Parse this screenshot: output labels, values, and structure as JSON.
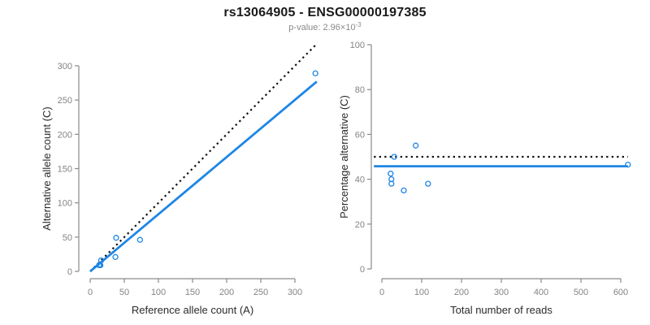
{
  "header": {
    "title": "rs13064905 - ENSG00000197385",
    "subtitle_prefix": "p-value: 2.96×10",
    "subtitle_exponent": "-3"
  },
  "colors": {
    "accent_blue": "#1E86E5",
    "dotted_black": "#111111",
    "axis_gray": "#8a8a8a",
    "tick_text_gray": "#848484",
    "axis_title_color": "#2a2a2a"
  },
  "chart_data": [
    {
      "type": "scatter",
      "name": "allele-counts-scatter",
      "title": "",
      "xlabel": "Reference allele count (A)",
      "ylabel": "Alternative allele count (C)",
      "xlim": [
        0,
        300
      ],
      "ylim": [
        0,
        300
      ],
      "xticks": [
        0,
        50,
        100,
        150,
        200,
        250,
        300
      ],
      "yticks": [
        0,
        50,
        100,
        150,
        200,
        250,
        300
      ],
      "grid": false,
      "legend": false,
      "point_style": "open-circle",
      "points": [
        [
          13,
          9
        ],
        [
          14,
          10
        ],
        [
          15,
          9
        ],
        [
          16,
          16
        ],
        [
          37,
          21
        ],
        [
          38,
          49
        ],
        [
          73,
          46
        ],
        [
          330,
          289
        ]
      ],
      "lines": [
        {
          "name": "identity-line",
          "style": "dotted",
          "color": "#111111",
          "from": [
            0,
            0
          ],
          "to": [
            330,
            330
          ]
        },
        {
          "name": "fit-line",
          "style": "solid",
          "color": "#1E86E5",
          "from": [
            0,
            0
          ],
          "to": [
            332,
            277
          ]
        }
      ]
    },
    {
      "type": "scatter",
      "name": "percentage-vs-reads-scatter",
      "title": "",
      "xlabel": "Total number of reads",
      "ylabel": "Percentage alternative (C)",
      "xlim": [
        0,
        600
      ],
      "ylim": [
        0,
        100
      ],
      "xticks": [
        0,
        100,
        200,
        300,
        400,
        500,
        600
      ],
      "yticks": [
        0,
        20,
        40,
        60,
        80,
        100
      ],
      "grid": false,
      "legend": false,
      "point_style": "open-circle",
      "points": [
        [
          22,
          42.5
        ],
        [
          24,
          40
        ],
        [
          24,
          38
        ],
        [
          31,
          50
        ],
        [
          55,
          35
        ],
        [
          85,
          55
        ],
        [
          116,
          38
        ],
        [
          618,
          46.5
        ]
      ],
      "lines": [
        {
          "name": "expected-50pct-line",
          "style": "dotted",
          "color": "#111111",
          "from": [
            -20,
            50
          ],
          "to": [
            618,
            50
          ]
        },
        {
          "name": "fit-line",
          "style": "solid",
          "color": "#1E86E5",
          "from": [
            -20,
            45.8
          ],
          "to": [
            618,
            45.8
          ]
        }
      ]
    }
  ]
}
